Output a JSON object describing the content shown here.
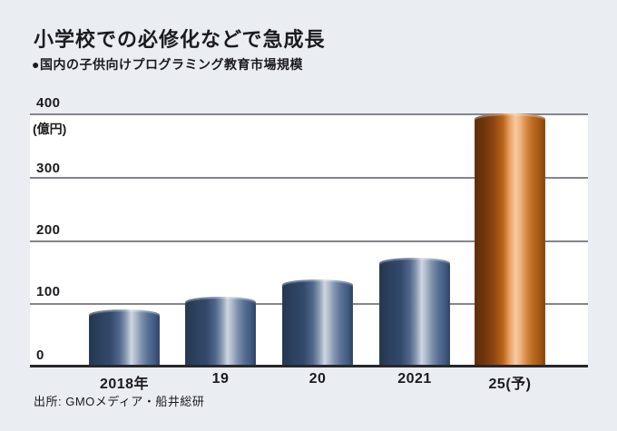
{
  "page": {
    "background_color": "#eaedf2"
  },
  "header": {
    "title": "小学校での必修化などで急成長",
    "subtitle": "●国内の子供向けプログラミング教育市場規模"
  },
  "chart_data": {
    "type": "bar",
    "title": "小学校での必修化などで急成長",
    "subtitle": "国内の子供向けプログラミング教育市場規模",
    "unit_label": "(億円)",
    "categories": [
      "2018年",
      "19",
      "20",
      "2021",
      "25(予)"
    ],
    "values": [
      90,
      111,
      137,
      172,
      400
    ],
    "forecast_index": 4,
    "ylim": [
      0,
      400
    ],
    "ytick_labels": [
      "0",
      "100",
      "200",
      "300",
      "400"
    ],
    "grid": true,
    "legend": "none",
    "bar_style": "cylindrical horizontal gradient",
    "colors": {
      "bar_blue": "#31476a",
      "bar_blue_highlight": "#cfd6e1",
      "bar_orange": "#b96417",
      "bar_orange_highlight": "#f6cba2",
      "gridline": "#85858c",
      "baseline": "#27272b",
      "plot_background": "#ffffff"
    }
  },
  "footer": {
    "source": "出所: GMOメディア・船井総研"
  }
}
